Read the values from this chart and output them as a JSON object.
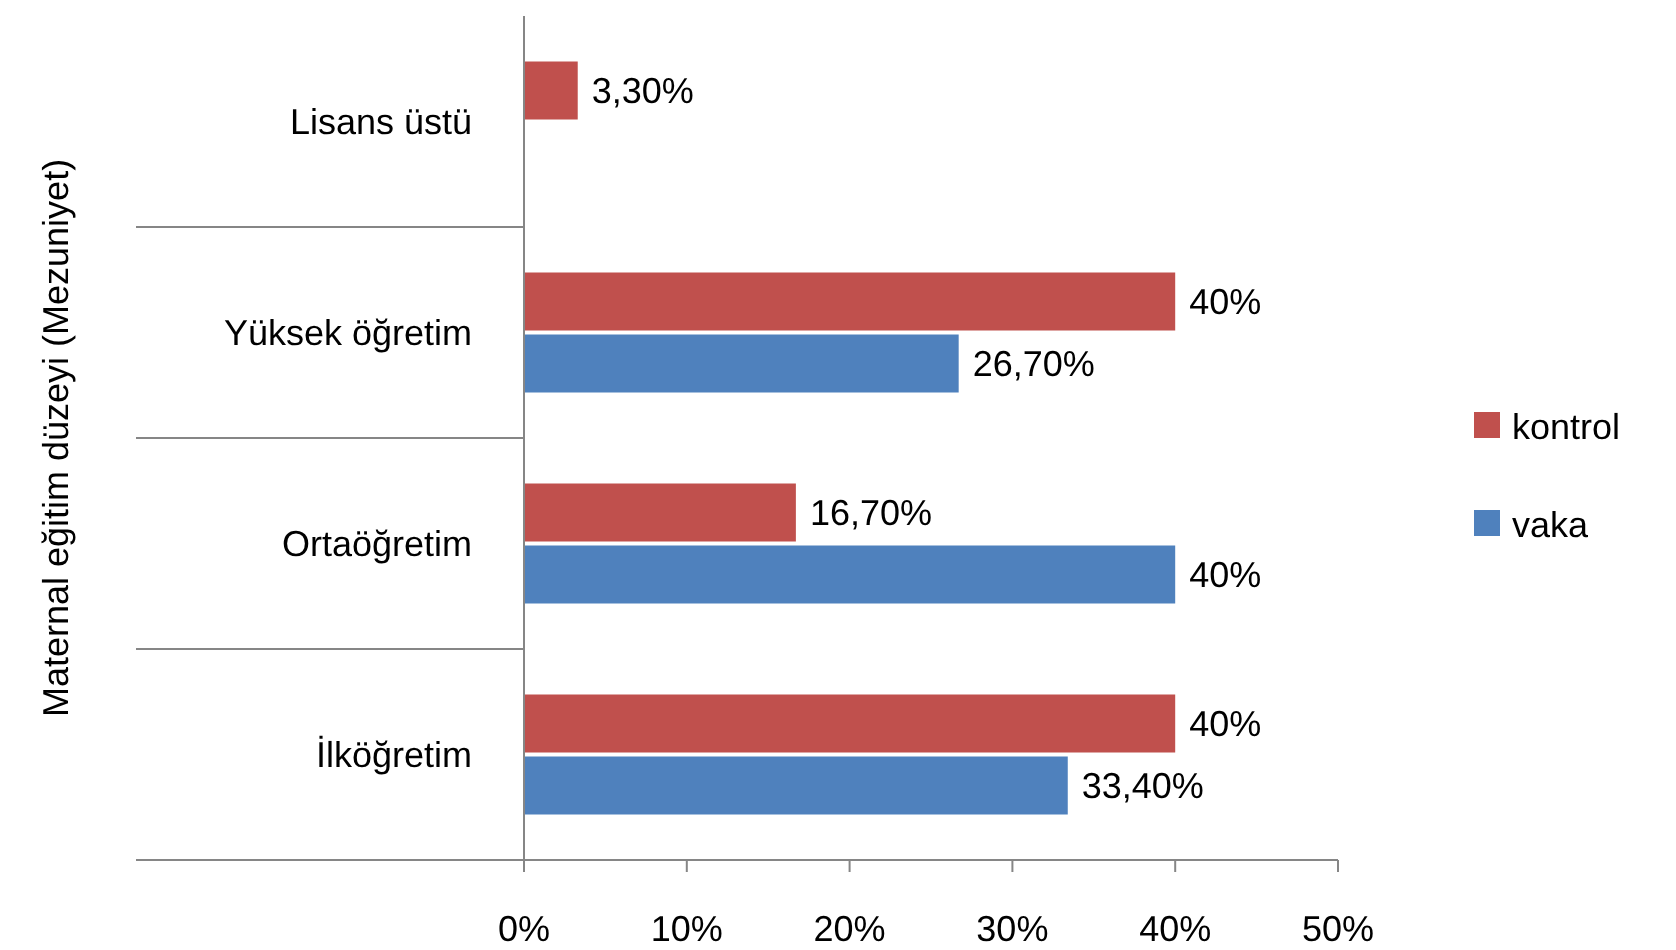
{
  "chart_data": {
    "type": "bar",
    "orientation": "horizontal",
    "ylabel": "Maternal eğitim düzeyi (Mezuniyet)",
    "categories": [
      "Lisans üstü",
      "Yüksek öğretim",
      "Ortaöğretim",
      "İlköğretim"
    ],
    "series": [
      {
        "name": "kontrol",
        "color": "#c0504d",
        "values": [
          3.3,
          40,
          16.7,
          40
        ],
        "value_labels": [
          "3,30%",
          "40%",
          "16,70%",
          "40%"
        ]
      },
      {
        "name": "vaka",
        "color": "#4f81bd",
        "values": [
          null,
          26.7,
          40,
          33.4
        ],
        "value_labels": [
          null,
          "26,70%",
          "40%",
          "33,40%"
        ]
      }
    ],
    "xlim": [
      0,
      50
    ],
    "xticks": [
      {
        "value": 0,
        "label": "0%"
      },
      {
        "value": 10,
        "label": "10%"
      },
      {
        "value": 20,
        "label": "20%"
      },
      {
        "value": 30,
        "label": "30%"
      },
      {
        "value": 40,
        "label": "40%"
      },
      {
        "value": 50,
        "label": "50%"
      }
    ],
    "legend": "right",
    "grid": false
  }
}
